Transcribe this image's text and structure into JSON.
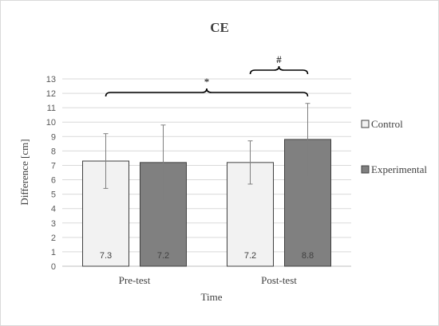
{
  "chart_data": {
    "type": "bar",
    "title": "CE",
    "xlabel": "Time",
    "ylabel": "Difference [cm]",
    "categories": [
      "Pre-test",
      "Post-test"
    ],
    "ylim": [
      0,
      13
    ],
    "yticks": [
      0,
      1,
      2,
      3,
      4,
      5,
      6,
      7,
      8,
      9,
      10,
      11,
      12,
      13
    ],
    "grid": true,
    "legend_position": "right",
    "series": [
      {
        "name": "Control",
        "color": "#f2f2f2",
        "values": [
          7.3,
          7.2
        ],
        "errors": [
          1.9,
          1.5
        ],
        "labels": [
          "7.3",
          "7.2"
        ]
      },
      {
        "name": "Experimental",
        "color": "#808080",
        "values": [
          7.2,
          8.8
        ],
        "errors": [
          2.6,
          2.5
        ],
        "labels": [
          "7.2",
          "8.8"
        ]
      }
    ],
    "annotations": [
      {
        "text": "*",
        "type": "bracket",
        "from": [
          "Pre-test",
          0
        ],
        "to": [
          "Post-test",
          1
        ],
        "level": "lower"
      },
      {
        "text": "#",
        "type": "bracket",
        "from": [
          "Post-test",
          0
        ],
        "to": [
          "Post-test",
          1
        ],
        "level": "upper"
      }
    ]
  }
}
